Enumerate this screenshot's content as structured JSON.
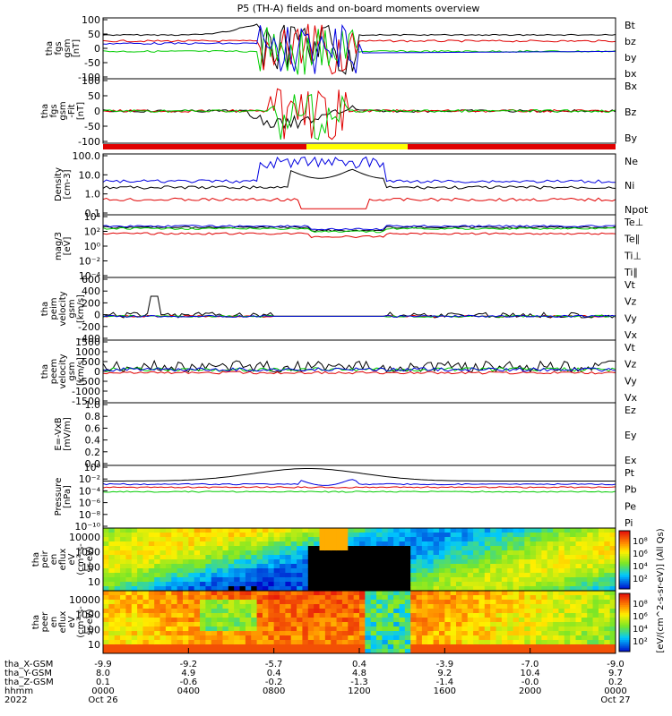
{
  "title": "P5 (TH-A) fields and on-board moments overview",
  "chart_data": {
    "type": "line",
    "title": "P5 (TH-A) fields and on-board moments overview",
    "x_axis": {
      "rows": [
        {
          "label": "tha_X-GSM",
          "values": [
            "-9.9",
            "-9.2",
            "-5.7",
            "0.4",
            "-3.9",
            "-7.0",
            "-9.0"
          ]
        },
        {
          "label": "tha_Y-GSM",
          "values": [
            "8.0",
            "4.9",
            "0.4",
            "4.8",
            "9.2",
            "10.4",
            "9.7"
          ]
        },
        {
          "label": "tha_Z-GSM",
          "values": [
            "0.1",
            "-0.6",
            "-0.2",
            "-1.3",
            "-1.4",
            "-0.0",
            "0.2"
          ]
        },
        {
          "label": "hhmm",
          "values": [
            "0000",
            "0400",
            "0800",
            "1200",
            "1600",
            "2000",
            "0000"
          ]
        },
        {
          "label": "2022",
          "values": [
            "Oct 26",
            "",
            "",
            "",
            "",
            "",
            "Oct 27"
          ]
        }
      ]
    },
    "panels": [
      {
        "id": "fgs_gsm",
        "ylabel": [
          "tha",
          "fgs",
          "gsm",
          "[nT]"
        ],
        "ticks": [
          "100",
          "50",
          "0",
          "-50",
          "-100"
        ],
        "ylim": [
          -100,
          100
        ],
        "series": [
          {
            "name": "Bt",
            "color": "#000000"
          },
          {
            "name": "bz",
            "color": "#e00000"
          },
          {
            "name": "by",
            "color": "#00cc00"
          },
          {
            "name": "bx",
            "color": "#0000e0"
          }
        ]
      },
      {
        "id": "fgs_gsm_fit",
        "ylabel": [
          "tha",
          "fgs",
          "gsm",
          "-Fit",
          "[nT]"
        ],
        "ticks": [
          "100",
          "50",
          "0",
          "-50",
          "-100"
        ],
        "ylim": [
          -120,
          120
        ],
        "series": [
          {
            "name": "Bx",
            "color": "#000000"
          },
          {
            "name": "Bz",
            "color": "#e00000"
          },
          {
            "name": "By",
            "color": "#00cc00"
          }
        ]
      },
      {
        "id": "density",
        "ylabel": [
          "Density",
          "[cm-3]"
        ],
        "ticks": [
          "100.0",
          "10.0",
          "1.0",
          "0.1"
        ],
        "ylim": [
          0.05,
          200
        ],
        "log": true,
        "series": [
          {
            "name": "Ne",
            "color": "#e00000"
          },
          {
            "name": "Ni",
            "color": "#000000"
          },
          {
            "name": "Npot",
            "color": "#0000e0"
          }
        ]
      },
      {
        "id": "temperature",
        "ylabel": [
          "mag/3",
          "[eV]"
        ],
        "ticks": [
          "10⁴",
          "10²",
          "10⁰",
          "10⁻²",
          "10⁻⁴"
        ],
        "log": true,
        "series": [
          {
            "name": "Te⊥",
            "color": "#e00000"
          },
          {
            "name": "Te∥",
            "color": "#000000"
          },
          {
            "name": "Ti⊥",
            "color": "#0000e0"
          },
          {
            "name": "Ti∥",
            "color": "#00cc00"
          }
        ]
      },
      {
        "id": "peim_velocity",
        "ylabel": [
          "tha",
          "peim",
          "velocity",
          "gsm",
          "[km/s]"
        ],
        "ticks": [
          "600",
          "400",
          "200",
          "0",
          "-200",
          "-400"
        ],
        "ylim": [
          -400,
          600
        ],
        "series": [
          {
            "name": "Vt",
            "color": "#000000"
          },
          {
            "name": "Vz",
            "color": "#e00000"
          },
          {
            "name": "Vy",
            "color": "#00cc00"
          },
          {
            "name": "Vx",
            "color": "#0000e0"
          }
        ]
      },
      {
        "id": "peem_velocity",
        "ylabel": [
          "tha",
          "peem",
          "velocity",
          "gsm",
          "[km/s]"
        ],
        "ticks": [
          "1500",
          "1000",
          "500",
          "0",
          "-500",
          "-1000",
          "-1500"
        ],
        "ylim": [
          -1500,
          1500
        ],
        "series": [
          {
            "name": "Vt",
            "color": "#000000"
          },
          {
            "name": "Vz",
            "color": "#e00000"
          },
          {
            "name": "Vy",
            "color": "#00cc00"
          },
          {
            "name": "Vx",
            "color": "#0000e0"
          }
        ]
      },
      {
        "id": "efield",
        "ylabel": [
          "E=-VxB",
          "[mV/m]"
        ],
        "ticks": [
          "1.0",
          "0.8",
          "0.6",
          "0.4",
          "0.2",
          "0.0"
        ],
        "ylim": [
          0,
          1
        ],
        "series": [
          {
            "name": "Ez",
            "color": "#e00000"
          },
          {
            "name": "Ey",
            "color": "#00cc00"
          },
          {
            "name": "Ex",
            "color": "#0000e0"
          }
        ]
      },
      {
        "id": "pressure",
        "ylabel": [
          "Pressure",
          "[nPa]"
        ],
        "ticks": [
          "10⁰",
          "10⁻²",
          "10⁻⁴",
          "10⁻⁶",
          "10⁻⁸",
          "10⁻¹⁰"
        ],
        "log": true,
        "series": [
          {
            "name": "Pt",
            "color": "#000000"
          },
          {
            "name": "Pb",
            "color": "#e00000"
          },
          {
            "name": "Pe",
            "color": "#00cc00"
          },
          {
            "name": "Pi",
            "color": "#0000e0"
          }
        ]
      },
      {
        "id": "peir_eflux",
        "type": "heatmap",
        "ylabel": [
          "tha",
          "peir",
          "en",
          "eflux",
          "eV",
          "(cm²-s-",
          "sr-eV)"
        ],
        "ticks": [
          "10000",
          "1000",
          "100",
          "10"
        ],
        "log": true
      },
      {
        "id": "peer_eflux",
        "type": "heatmap",
        "ylabel": [
          "tha",
          "peer",
          "en",
          "eflux",
          "eV",
          "(cm²-s-",
          "sr-eV)"
        ],
        "ticks": [
          "10000",
          "1000",
          "100",
          "10"
        ],
        "log": true
      }
    ],
    "colorbar": {
      "label": "[eV/(cm^2-s-sr-eV)] (All Qs)",
      "upper_ticks": [
        "10⁸",
        "10⁶",
        "10⁴",
        "10²"
      ],
      "lower_ticks": [
        "10⁸",
        "10⁶",
        "10⁴",
        "10²"
      ]
    },
    "mode_bar": {
      "segments": [
        {
          "color": "#e00000"
        },
        {
          "color": "#ffff00"
        },
        {
          "color": "#e00000"
        }
      ]
    }
  }
}
